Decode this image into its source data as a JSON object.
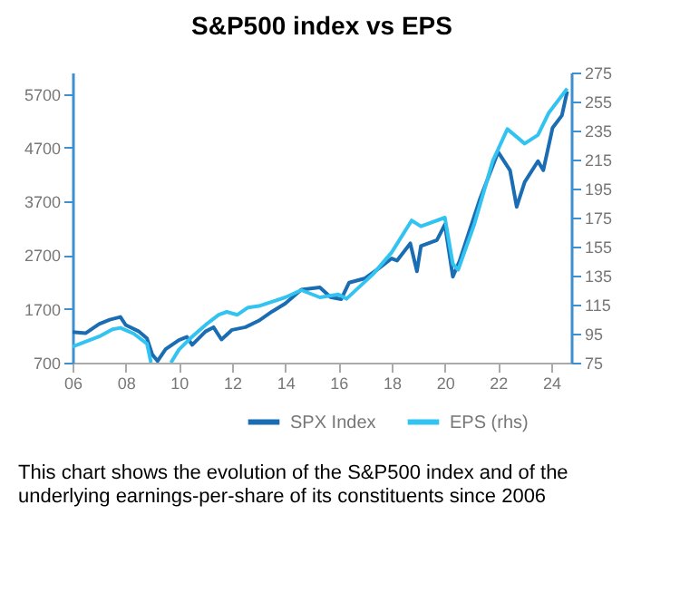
{
  "chart_data": {
    "type": "line",
    "title": "S&P500 index vs EPS",
    "x": [
      2006.0,
      2006.5,
      2007.0,
      2007.4,
      2007.8,
      2008.0,
      2008.5,
      2008.8,
      2009.0,
      2009.2,
      2009.5,
      2010.0,
      2010.3,
      2010.5,
      2011.0,
      2011.3,
      2011.6,
      2012.0,
      2012.5,
      2013.0,
      2013.5,
      2014.0,
      2014.6,
      2015.3,
      2015.7,
      2016.1,
      2016.4,
      2017.0,
      2017.5,
      2018.0,
      2018.2,
      2018.7,
      2018.95,
      2019.1,
      2019.7,
      2020.0,
      2020.3,
      2020.55,
      2021.3,
      2022.0,
      2022.45,
      2022.7,
      2023.0,
      2023.5,
      2023.7,
      2024.05,
      2024.4,
      2024.6
    ],
    "series": [
      {
        "name": "SPX Index",
        "color": "#1b6db3",
        "values": [
          1270,
          1250,
          1420,
          1500,
          1550,
          1400,
          1280,
          1150,
          850,
          730,
          950,
          1120,
          1180,
          1030,
          1280,
          1360,
          1130,
          1310,
          1360,
          1480,
          1650,
          1800,
          2060,
          2100,
          1920,
          1880,
          2190,
          2270,
          2450,
          2640,
          2600,
          2920,
          2400,
          2870,
          2980,
          3270,
          2300,
          2590,
          3720,
          4620,
          4280,
          3600,
          4060,
          4450,
          4280,
          5070,
          5300,
          5750
        ]
      },
      {
        "name": "EPS (rhs)",
        "color": "#33c3f0",
        "axis": "y2",
        "x": [
          2006.0,
          2007.0,
          2007.5,
          2007.8,
          2008.3,
          2008.8,
          2008.95,
          2009.3,
          2009.7,
          2010.0,
          2010.5,
          2011.0,
          2011.5,
          2011.8,
          2012.2,
          2012.6,
          2013.0,
          2013.5,
          2014.0,
          2014.6,
          2015.3,
          2016.0,
          2016.3,
          2017.3,
          2018.0,
          2018.75,
          2019.1,
          2020.0,
          2020.3,
          2020.5,
          2021.1,
          2021.8,
          2022.35,
          2023.0,
          2023.5,
          2023.9,
          2024.6
        ],
        "values": [
          86,
          93,
          98,
          99,
          95,
          88,
          75,
          null,
          75,
          84,
          93,
          101,
          108,
          110,
          108,
          113,
          114,
          117,
          120,
          125,
          120,
          122,
          119,
          136,
          151,
          173,
          169,
          175,
          143,
          139,
          170,
          214,
          236,
          226,
          232,
          247,
          264
        ]
      }
    ],
    "xlim": [
      2006,
      2024.75
    ],
    "xticks": [
      {
        "value": 2006,
        "label": "06"
      },
      {
        "value": 2008,
        "label": "08"
      },
      {
        "value": 2010,
        "label": "10"
      },
      {
        "value": 2012,
        "label": "12"
      },
      {
        "value": 2014,
        "label": "14"
      },
      {
        "value": 2016,
        "label": "16"
      },
      {
        "value": 2018,
        "label": "18"
      },
      {
        "value": 2020,
        "label": "20"
      },
      {
        "value": 2022,
        "label": "22"
      },
      {
        "value": 2024,
        "label": "24"
      }
    ],
    "ylim": [
      700,
      6100
    ],
    "yticks": [
      700,
      1700,
      2700,
      3700,
      4700,
      5700
    ],
    "y2lim": [
      75,
      275
    ],
    "y2ticks": [
      75,
      95,
      115,
      135,
      155,
      175,
      195,
      215,
      235,
      255,
      275
    ],
    "grid": false,
    "legend": "bottom",
    "marker": "none",
    "line_style": "solid",
    "annotations": [
      "This chart shows the evolution of the S&P500 index and of the underlying earnings-per-share of its constituents since 2006"
    ]
  }
}
